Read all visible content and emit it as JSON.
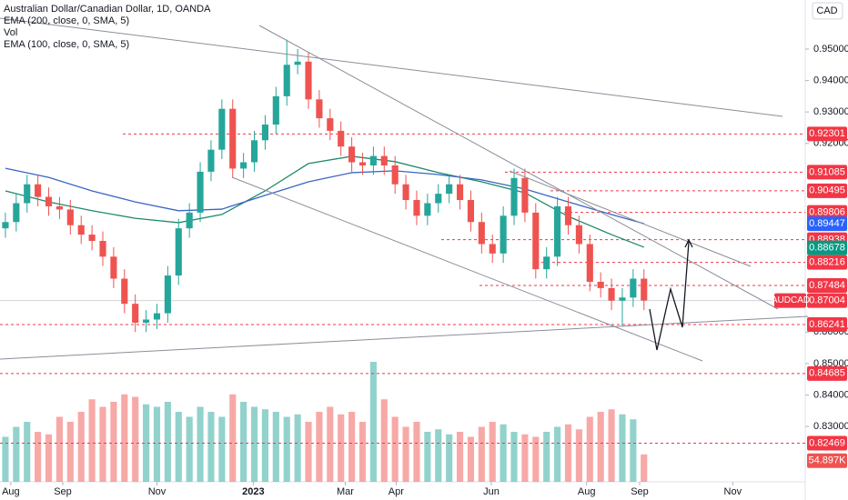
{
  "chart_data": {
    "type": "candlestick",
    "title": "Australian Dollar/Canadian Dollar, 1D, OANDA",
    "indicators": [
      "EMA (200, close, 0, SMA, 5)",
      "Vol",
      "EMA (100, close, 0, SMA, 5)"
    ],
    "currency": "CAD",
    "symbol": "AUDCAD",
    "up_color": "#26a69a",
    "down_color": "#ef5350",
    "xlim": [
      -0.5,
      73.9
    ],
    "ylim": [
      0.8124,
      0.9656
    ],
    "xticks": [
      {
        "value": 0.5,
        "label": "Aug"
      },
      {
        "value": 5.3,
        "label": "Sep"
      },
      {
        "value": 14.0,
        "label": "Nov"
      },
      {
        "value": 22.9,
        "label": "2023"
      },
      {
        "value": 31.4,
        "label": "Mar"
      },
      {
        "value": 36.1,
        "label": "Apr"
      },
      {
        "value": 44.9,
        "label": "Jun"
      },
      {
        "value": 53.7,
        "label": "Aug"
      },
      {
        "value": 58.6,
        "label": "Sep"
      },
      {
        "value": 67.2,
        "label": "Nov"
      }
    ],
    "yticks": [
      {
        "value": 0.95,
        "label": "0.95000"
      },
      {
        "value": 0.94,
        "label": "0.94000"
      },
      {
        "value": 0.93,
        "label": "0.93000"
      },
      {
        "value": 0.92,
        "label": "0.92000"
      },
      {
        "value": 0.86,
        "label": "0.86000"
      },
      {
        "value": 0.85,
        "label": "0.85000"
      },
      {
        "value": 0.84,
        "label": "0.84000"
      },
      {
        "value": 0.83,
        "label": "0.83000"
      }
    ],
    "open": [
      0.893,
      0.895,
      0.901,
      0.907,
      0.903,
      0.9,
      0.899,
      0.894,
      0.891,
      0.889,
      0.884,
      0.877,
      0.869,
      0.863,
      0.864,
      0.866,
      0.878,
      0.893,
      0.898,
      0.911,
      0.918,
      0.931,
      0.912,
      0.914,
      0.921,
      0.926,
      0.935,
      0.945,
      0.946,
      0.934,
      0.928,
      0.924,
      0.919,
      0.914,
      0.913,
      0.916,
      0.913,
      0.907,
      0.902,
      0.897,
      0.901,
      0.904,
      0.907,
      0.902,
      0.895,
      0.888,
      0.885,
      0.897,
      0.909,
      0.898,
      0.88,
      0.884,
      0.9,
      0.894,
      0.888,
      0.876,
      0.874,
      0.87,
      0.871,
      0.877
    ],
    "high": [
      0.898,
      0.904,
      0.91,
      0.91,
      0.906,
      0.903,
      0.902,
      0.897,
      0.894,
      0.892,
      0.887,
      0.88,
      0.872,
      0.867,
      0.869,
      0.881,
      0.896,
      0.901,
      0.914,
      0.921,
      0.934,
      0.934,
      0.917,
      0.924,
      0.929,
      0.938,
      0.953,
      0.95,
      0.949,
      0.937,
      0.931,
      0.927,
      0.922,
      0.917,
      0.919,
      0.919,
      0.916,
      0.91,
      0.905,
      0.904,
      0.907,
      0.91,
      0.91,
      0.905,
      0.898,
      0.891,
      0.9,
      0.912,
      0.912,
      0.901,
      0.887,
      0.903,
      0.903,
      0.897,
      0.891,
      0.879,
      0.877,
      0.874,
      0.88,
      0.88
    ],
    "low": [
      0.89,
      0.892,
      0.898,
      0.9,
      0.897,
      0.896,
      0.891,
      0.888,
      0.886,
      0.881,
      0.874,
      0.866,
      0.86,
      0.86,
      0.861,
      0.863,
      0.875,
      0.89,
      0.895,
      0.908,
      0.915,
      0.909,
      0.909,
      0.911,
      0.918,
      0.923,
      0.932,
      0.942,
      0.931,
      0.925,
      0.921,
      0.916,
      0.911,
      0.91,
      0.91,
      0.91,
      0.904,
      0.899,
      0.894,
      0.894,
      0.898,
      0.901,
      0.899,
      0.892,
      0.885,
      0.882,
      0.882,
      0.894,
      0.895,
      0.877,
      0.877,
      0.881,
      0.891,
      0.885,
      0.873,
      0.871,
      0.867,
      0.862,
      0.868,
      0.867
    ],
    "close": [
      0.895,
      0.901,
      0.907,
      0.903,
      0.9,
      0.899,
      0.894,
      0.891,
      0.889,
      0.884,
      0.877,
      0.869,
      0.863,
      0.864,
      0.866,
      0.878,
      0.893,
      0.898,
      0.911,
      0.918,
      0.931,
      0.912,
      0.914,
      0.921,
      0.926,
      0.935,
      0.945,
      0.946,
      0.934,
      0.928,
      0.924,
      0.919,
      0.914,
      0.913,
      0.916,
      0.913,
      0.907,
      0.902,
      0.897,
      0.901,
      0.904,
      0.907,
      0.902,
      0.895,
      0.888,
      0.885,
      0.897,
      0.909,
      0.898,
      0.88,
      0.884,
      0.9,
      0.894,
      0.888,
      0.876,
      0.874,
      0.87,
      0.871,
      0.877,
      0.87004
    ],
    "volume": {
      "values": [
        90000,
        110000,
        120000,
        100000,
        95000,
        130000,
        120000,
        140000,
        165000,
        150000,
        160000,
        175000,
        170000,
        155000,
        150000,
        160000,
        140000,
        130000,
        150000,
        140000,
        130000,
        175000,
        160000,
        150000,
        145000,
        140000,
        130000,
        135000,
        120000,
        140000,
        150000,
        135000,
        140000,
        120000,
        240000,
        165000,
        130000,
        110000,
        120000,
        100000,
        105000,
        95000,
        100000,
        90000,
        110000,
        120000,
        115000,
        100000,
        95000,
        90000,
        100000,
        110000,
        115000,
        105000,
        130000,
        140000,
        145000,
        135000,
        125000,
        54897
      ],
      "last_label": "54.897K",
      "color": "#ef5350"
    },
    "series": [
      {
        "name": "EMA (100, close, 0, SMA, 5)",
        "color": "#1e8a6c",
        "x": [
          0,
          4,
          8,
          12,
          16,
          20,
          24,
          28,
          32,
          36,
          40,
          44,
          48,
          52,
          56,
          59
        ],
        "values": [
          0.9049,
          0.9014,
          0.8986,
          0.8962,
          0.8948,
          0.8974,
          0.9049,
          0.9136,
          0.9159,
          0.9142,
          0.9107,
          0.9078,
          0.9043,
          0.8968,
          0.891,
          0.887
        ]
      },
      {
        "name": "EMA (200, close, 0, SMA, 5)",
        "color": "#3a66c4",
        "x": [
          0,
          4,
          8,
          12,
          16,
          20,
          24,
          28,
          32,
          36,
          40,
          44,
          48,
          52,
          56,
          59
        ],
        "values": [
          0.9121,
          0.9092,
          0.9049,
          0.9014,
          0.8986,
          0.8991,
          0.9035,
          0.9078,
          0.9107,
          0.9113,
          0.9101,
          0.9084,
          0.9055,
          0.9014,
          0.8974,
          0.8945
        ]
      }
    ],
    "levels": [
      {
        "value": 0.92301,
        "label": "0.92301",
        "color": "#f23645",
        "dashed": true
      },
      {
        "value": 0.91085,
        "label": "0.91085",
        "color": "#f23645",
        "dashed": true
      },
      {
        "value": 0.90495,
        "label": "0.90495",
        "color": "#f23645",
        "dashed": true
      },
      {
        "value": 0.89806,
        "label": "0.89806",
        "color": "#f23645",
        "dashed": true
      },
      {
        "value": 0.89447,
        "label": "0.89447",
        "color": "#2962ff",
        "dashed": false
      },
      {
        "value": 0.88938,
        "label": "0.88938",
        "color": "#f23645",
        "dashed": true
      },
      {
        "value": 0.88678,
        "label": "0.88678",
        "color": "#089981",
        "dashed": false
      },
      {
        "value": 0.88216,
        "label": "0.88216",
        "color": "#f23645",
        "dashed": true
      },
      {
        "value": 0.87484,
        "label": "0.87484",
        "color": "#f23645",
        "dashed": true
      },
      {
        "value": 0.87004,
        "label": "0.87004",
        "color": "#f23645",
        "dashed": false
      },
      {
        "value": 0.86241,
        "label": "0.86241",
        "color": "#f23645",
        "dashed": true
      },
      {
        "value": 0.84685,
        "label": "0.84685",
        "color": "#f23645",
        "dashed": true
      },
      {
        "value": 0.82469,
        "label": "0.82469",
        "color": "#f23645",
        "dashed": true
      }
    ]
  }
}
